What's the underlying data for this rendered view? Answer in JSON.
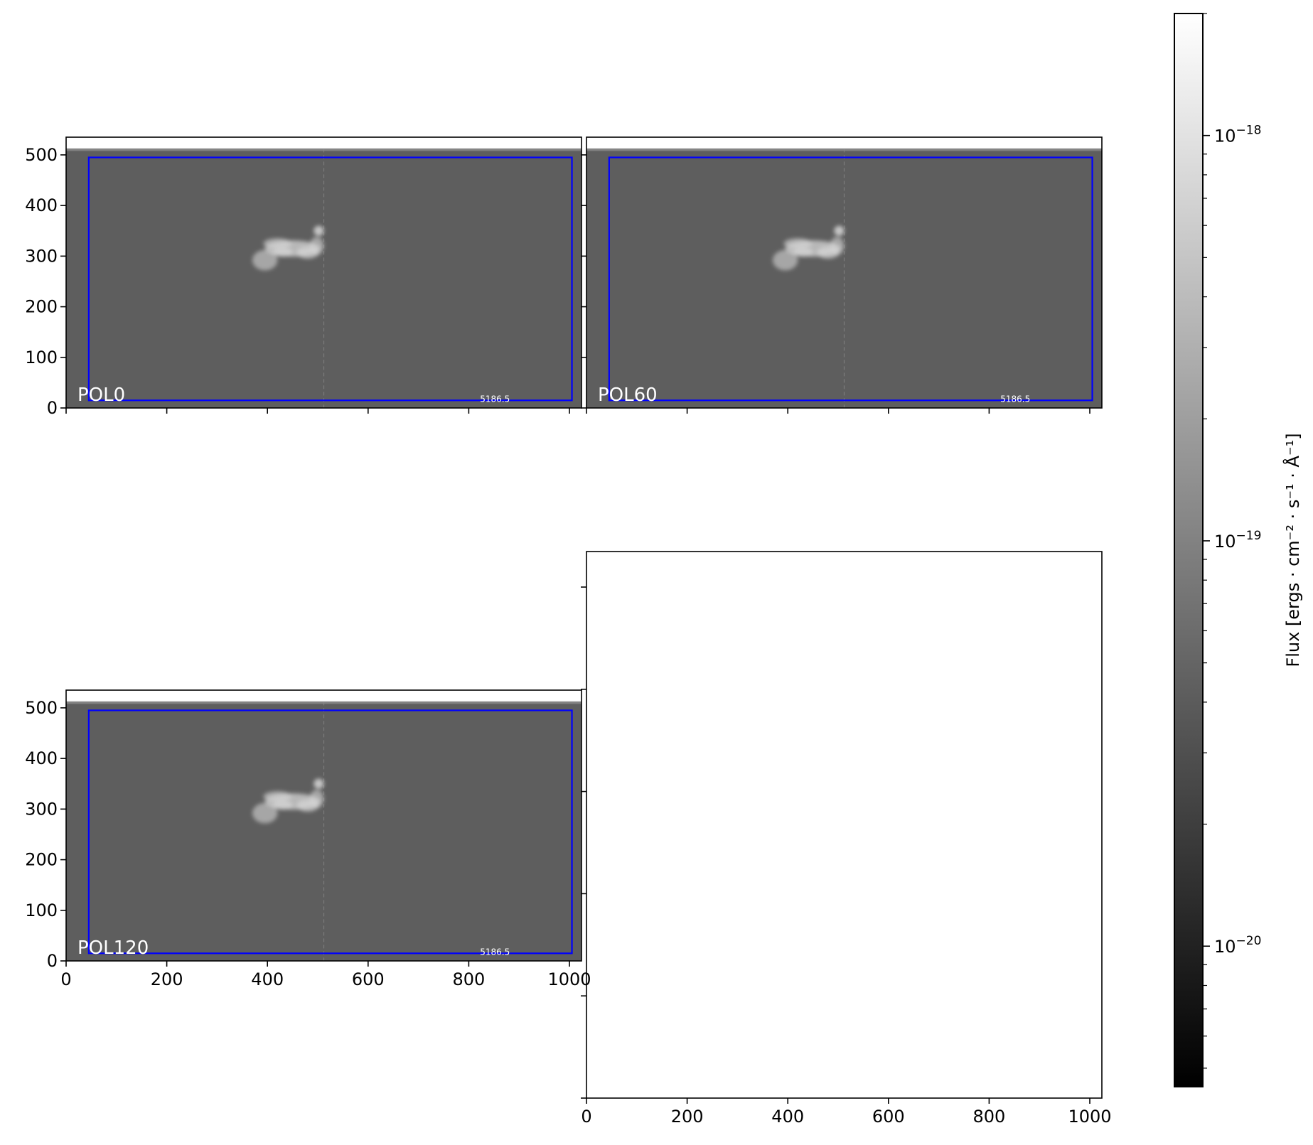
{
  "chart_data": [
    {
      "type": "heatmap",
      "panel": "POL0",
      "label": "POL0",
      "xlim": [
        0,
        1024
      ],
      "ylim": [
        0,
        535
      ],
      "xticks": [
        0,
        200,
        400,
        600,
        800,
        1000
      ],
      "yticks": [
        0,
        100,
        200,
        300,
        400,
        500
      ],
      "x_tick_labels_visible": false,
      "image_extent": {
        "x": [
          0,
          1024
        ],
        "y": [
          0,
          512
        ]
      },
      "box": {
        "x0": 45,
        "x1": 1005,
        "y0": 15,
        "y1": 495,
        "color": "#0000ff"
      },
      "center_x": 512,
      "annotation": "5186.5",
      "annotation_pos": {
        "x": 852,
        "y": 12
      },
      "source_center": {
        "x": 450,
        "y": 310
      }
    },
    {
      "type": "heatmap",
      "panel": "POL60",
      "label": "POL60",
      "xlim": [
        0,
        1024
      ],
      "ylim": [
        0,
        535
      ],
      "xticks": [
        0,
        200,
        400,
        600,
        800,
        1000
      ],
      "yticks": [
        0,
        100,
        200,
        300,
        400,
        500
      ],
      "x_tick_labels_visible": false,
      "y_tick_labels_visible": false,
      "image_extent": {
        "x": [
          0,
          1024
        ],
        "y": [
          0,
          512
        ]
      },
      "box": {
        "x0": 45,
        "x1": 1005,
        "y0": 15,
        "y1": 495,
        "color": "#0000ff"
      },
      "center_x": 512,
      "annotation": "5186.5",
      "annotation_pos": {
        "x": 852,
        "y": 12
      },
      "source_center": {
        "x": 450,
        "y": 310
      }
    },
    {
      "type": "heatmap",
      "panel": "POL120",
      "label": "POL120",
      "xlim": [
        0,
        1024
      ],
      "ylim": [
        0,
        535
      ],
      "xticks": [
        0,
        200,
        400,
        600,
        800,
        1000
      ],
      "yticks": [
        0,
        100,
        200,
        300,
        400,
        500
      ],
      "xtick_labels": [
        "0",
        "200",
        "400",
        "600",
        "800",
        "1000"
      ],
      "ytick_labels": [
        "0",
        "100",
        "200",
        "300",
        "400",
        "500"
      ],
      "image_extent": {
        "x": [
          0,
          1024
        ],
        "y": [
          0,
          512
        ]
      },
      "box": {
        "x0": 45,
        "x1": 1005,
        "y0": 15,
        "y1": 495,
        "color": "#0000ff"
      },
      "center_x": 512,
      "annotation": "5186.5",
      "annotation_pos": {
        "x": 852,
        "y": 12
      },
      "source_center": {
        "x": 450,
        "y": 310
      }
    },
    {
      "type": "heatmap",
      "panel": "empty",
      "xlim": [
        0,
        1024
      ],
      "xticks": [
        0,
        200,
        400,
        600,
        800,
        1000
      ],
      "xtick_labels": [
        "0",
        "200",
        "400",
        "600",
        "800",
        "1000"
      ],
      "empty": true
    }
  ],
  "colorbar": {
    "label": "Flux [ergs · cm⁻² · s⁻¹ · Å⁻¹]",
    "scale": "log",
    "range": [
      4.5e-21,
      2e-18
    ],
    "major_ticks": [
      1e-20,
      1e-19,
      1e-18
    ],
    "tick_labels": [
      {
        "base": "10",
        "exp": "−20"
      },
      {
        "base": "10",
        "exp": "−19"
      },
      {
        "base": "10",
        "exp": "−18"
      }
    ],
    "colormap": "gray"
  },
  "colors": {
    "image_background": "#5e5e5e",
    "box": "#0000ff",
    "panel_label": "#ffffff",
    "center_line": "#8a8a8a"
  }
}
